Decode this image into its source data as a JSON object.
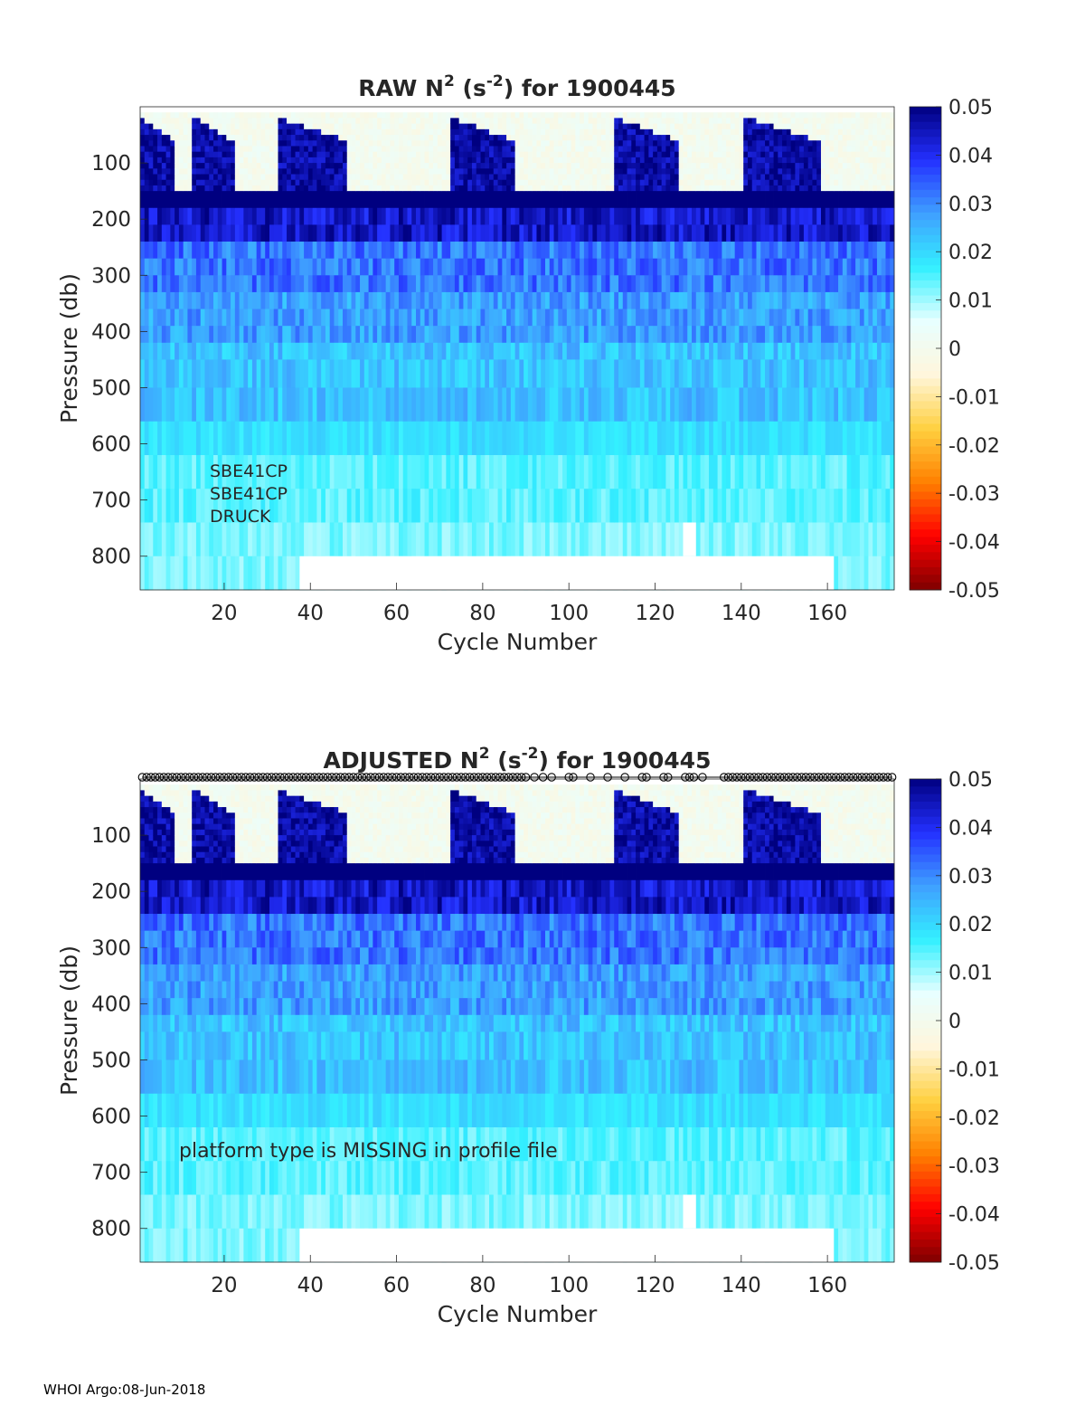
{
  "footer": "WHOI Argo:08-Jun-2018",
  "colors": {
    "colormap": [
      "#7f0000",
      "#ff0000",
      "#ff8000",
      "#ffd040",
      "#fff6dc",
      "#e8ffff",
      "#33f0ff",
      "#3fa0ff",
      "#2430ff",
      "#000080"
    ],
    "missing": "#ffffff",
    "axis": "#262626"
  },
  "chart_data": [
    {
      "type": "heatmap",
      "title": "RAW N² (s⁻²) for 1900445",
      "title_parts": {
        "pre": "RAW N",
        "sup1": "2",
        "mid": " (s",
        "sup2": "-2",
        "post": ") for 1900445"
      },
      "xlabel": "Cycle Number",
      "ylabel": "Pressure (db)",
      "xlim": [
        1,
        175
      ],
      "ylim": [
        0,
        860
      ],
      "y_reversed": true,
      "xticks": [
        20,
        40,
        60,
        80,
        100,
        120,
        140,
        160
      ],
      "yticks": [
        100,
        200,
        300,
        400,
        500,
        600,
        700,
        800
      ],
      "colorbar": {
        "range": [
          -0.05,
          0.05
        ],
        "ticks": [
          "0.05",
          "0.04",
          "0.03",
          "0.02",
          "0.01",
          "0",
          "-0.01",
          "-0.02",
          "-0.03",
          "-0.04",
          "-0.05"
        ]
      },
      "annotations": [
        "SBE41CP",
        "SBE41CP",
        "DRUCK"
      ],
      "missing_regions": [
        {
          "x": [
            38,
            162
          ],
          "p": [
            800,
            860
          ]
        },
        {
          "x": [
            127,
            130
          ],
          "p": [
            740,
            800
          ]
        }
      ],
      "markers": null
    },
    {
      "type": "heatmap",
      "title": "ADJUSTED N² (s⁻²) for 1900445",
      "title_parts": {
        "pre": "ADJUSTED N",
        "sup1": "2",
        "mid": " (s",
        "sup2": "-2",
        "post": ") for 1900445"
      },
      "xlabel": "Cycle Number",
      "ylabel": "Pressure (db)",
      "xlim": [
        1,
        175
      ],
      "ylim": [
        0,
        860
      ],
      "y_reversed": true,
      "xticks": [
        20,
        40,
        60,
        80,
        100,
        120,
        140,
        160
      ],
      "yticks": [
        100,
        200,
        300,
        400,
        500,
        600,
        700,
        800
      ],
      "colorbar": {
        "range": [
          -0.05,
          0.05
        ],
        "ticks": [
          "0.05",
          "0.04",
          "0.03",
          "0.02",
          "0.01",
          "0",
          "-0.01",
          "-0.02",
          "-0.03",
          "-0.04",
          "-0.05"
        ]
      },
      "annotations": [
        "platform type is MISSING in profile file"
      ],
      "missing_regions": [
        {
          "x": [
            38,
            162
          ],
          "p": [
            800,
            860
          ]
        },
        {
          "x": [
            127,
            130
          ],
          "p": [
            740,
            800
          ]
        }
      ],
      "markers": {
        "symbol": "o",
        "cycles": [
          1,
          2,
          3,
          4,
          5,
          6,
          7,
          8,
          9,
          10,
          11,
          12,
          13,
          14,
          15,
          16,
          17,
          18,
          19,
          20,
          21,
          22,
          23,
          24,
          25,
          26,
          27,
          28,
          29,
          30,
          31,
          32,
          33,
          34,
          35,
          36,
          37,
          38,
          39,
          40,
          41,
          42,
          43,
          44,
          45,
          46,
          47,
          48,
          49,
          50,
          51,
          52,
          53,
          54,
          55,
          56,
          57,
          58,
          59,
          60,
          61,
          62,
          63,
          64,
          65,
          66,
          67,
          68,
          69,
          70,
          71,
          72,
          73,
          74,
          75,
          76,
          77,
          78,
          79,
          80,
          81,
          82,
          83,
          84,
          85,
          86,
          87,
          88,
          89,
          90,
          92,
          94,
          96,
          100,
          101,
          105,
          109,
          113,
          117,
          118,
          122,
          123,
          127,
          128,
          129,
          131,
          136,
          137,
          138,
          139,
          140,
          141,
          142,
          143,
          144,
          145,
          146,
          147,
          148,
          149,
          150,
          151,
          152,
          153,
          154,
          155,
          156,
          157,
          158,
          159,
          160,
          161,
          162,
          163,
          164,
          165,
          166,
          167,
          168,
          169,
          170,
          171,
          172,
          173,
          174,
          175
        ]
      }
    }
  ]
}
